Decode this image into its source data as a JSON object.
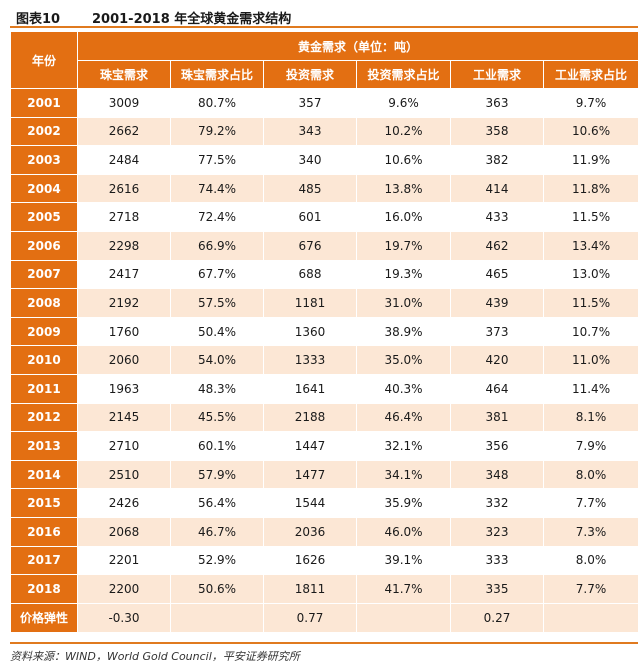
{
  "figure_no": "图表10",
  "figure_title": "2001-2018 年全球黄金需求结构",
  "header": {
    "year_label": "年份",
    "group_label": "黄金需求（单位：吨）",
    "columns": [
      "珠宝需求",
      "珠宝需求占比",
      "投资需求",
      "投资需求占比",
      "工业需求",
      "工业需求占比"
    ]
  },
  "rows": [
    {
      "year": "2001",
      "cells": [
        "3009",
        "80.7%",
        "357",
        "9.6%",
        "363",
        "9.7%"
      ]
    },
    {
      "year": "2002",
      "cells": [
        "2662",
        "79.2%",
        "343",
        "10.2%",
        "358",
        "10.6%"
      ]
    },
    {
      "year": "2003",
      "cells": [
        "2484",
        "77.5%",
        "340",
        "10.6%",
        "382",
        "11.9%"
      ]
    },
    {
      "year": "2004",
      "cells": [
        "2616",
        "74.4%",
        "485",
        "13.8%",
        "414",
        "11.8%"
      ]
    },
    {
      "year": "2005",
      "cells": [
        "2718",
        "72.4%",
        "601",
        "16.0%",
        "433",
        "11.5%"
      ]
    },
    {
      "year": "2006",
      "cells": [
        "2298",
        "66.9%",
        "676",
        "19.7%",
        "462",
        "13.4%"
      ]
    },
    {
      "year": "2007",
      "cells": [
        "2417",
        "67.7%",
        "688",
        "19.3%",
        "465",
        "13.0%"
      ]
    },
    {
      "year": "2008",
      "cells": [
        "2192",
        "57.5%",
        "1181",
        "31.0%",
        "439",
        "11.5%"
      ]
    },
    {
      "year": "2009",
      "cells": [
        "1760",
        "50.4%",
        "1360",
        "38.9%",
        "373",
        "10.7%"
      ]
    },
    {
      "year": "2010",
      "cells": [
        "2060",
        "54.0%",
        "1333",
        "35.0%",
        "420",
        "11.0%"
      ]
    },
    {
      "year": "2011",
      "cells": [
        "1963",
        "48.3%",
        "1641",
        "40.3%",
        "464",
        "11.4%"
      ]
    },
    {
      "year": "2012",
      "cells": [
        "2145",
        "45.5%",
        "2188",
        "46.4%",
        "381",
        "8.1%"
      ]
    },
    {
      "year": "2013",
      "cells": [
        "2710",
        "60.1%",
        "1447",
        "32.1%",
        "356",
        "7.9%"
      ]
    },
    {
      "year": "2014",
      "cells": [
        "2510",
        "57.9%",
        "1477",
        "34.1%",
        "348",
        "8.0%"
      ]
    },
    {
      "year": "2015",
      "cells": [
        "2426",
        "56.4%",
        "1544",
        "35.9%",
        "332",
        "7.7%"
      ]
    },
    {
      "year": "2016",
      "cells": [
        "2068",
        "46.7%",
        "2036",
        "46.0%",
        "323",
        "7.3%"
      ]
    },
    {
      "year": "2017",
      "cells": [
        "2201",
        "52.9%",
        "1626",
        "39.1%",
        "333",
        "8.0%"
      ]
    },
    {
      "year": "2018",
      "cells": [
        "2200",
        "50.6%",
        "1811",
        "41.7%",
        "335",
        "7.7%"
      ]
    }
  ],
  "elasticity": {
    "label": "价格弹性",
    "cells": [
      "-0.30",
      "",
      "0.77",
      "",
      "0.27",
      ""
    ]
  },
  "source": "资料来源：WIND，World Gold Council，平安证券研究所",
  "colors": {
    "accent": "#e36f12",
    "stripe": "#fce7d5"
  }
}
